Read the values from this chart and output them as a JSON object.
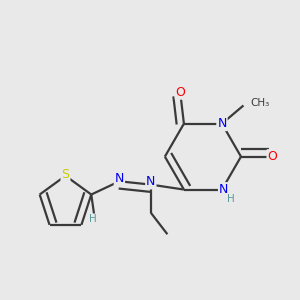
{
  "background_color": "#e9e9e9",
  "bond_color": "#3a3a3a",
  "atom_colors": {
    "N": "#0000ee",
    "O": "#ff0000",
    "S": "#cccc00",
    "C": "#3a3a3a",
    "H": "#5a9a9a"
  },
  "figsize": [
    3.0,
    3.0
  ],
  "dpi": 100
}
